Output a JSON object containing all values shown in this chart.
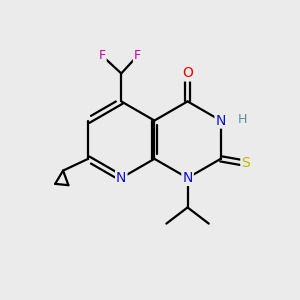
{
  "background_color": "#ebebeb",
  "atom_colors": {
    "C": "#000000",
    "N": "#1010cc",
    "O": "#ee0000",
    "S": "#b8b800",
    "F": "#cc00aa",
    "H": "#5a9090"
  },
  "figsize": [
    3.0,
    3.0
  ],
  "dpi": 100
}
